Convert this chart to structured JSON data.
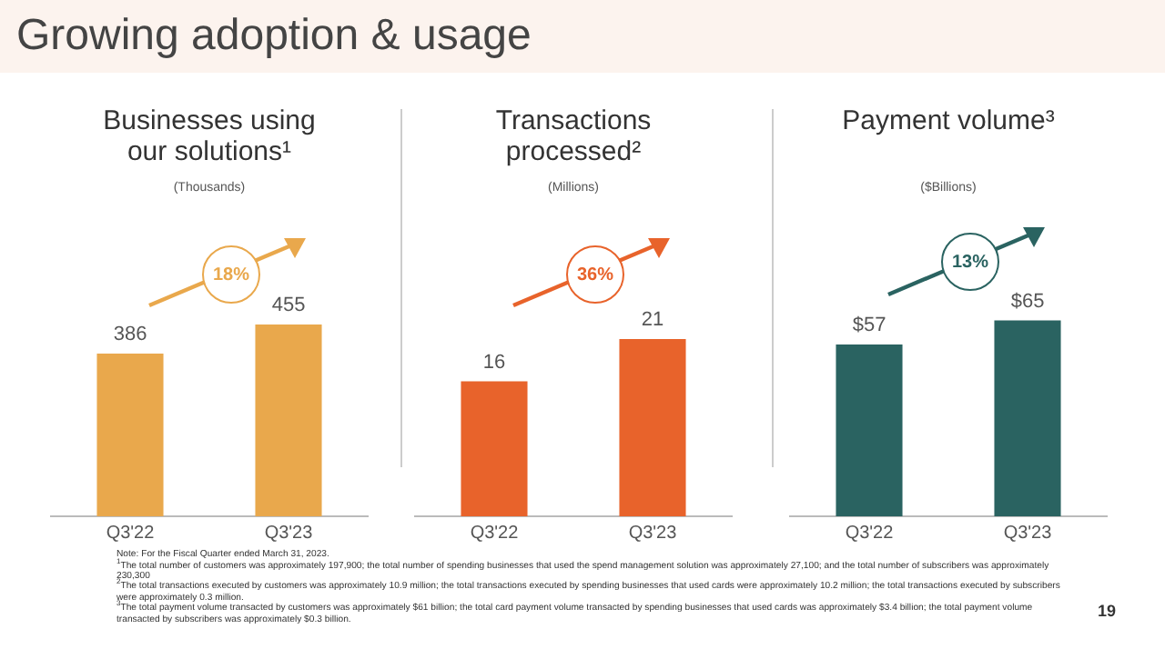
{
  "chart_data": [
    {
      "type": "bar",
      "title": "Businesses using our solutions¹",
      "subtitle": "(Thousands)",
      "categories": [
        "Q3'22",
        "Q3'23"
      ],
      "values": [
        386,
        455
      ],
      "color": "#e9a84c",
      "data_labels": true,
      "annotations": [
        "18%",
        "Growing adoption & usage",
        "Note: For the Fiscal Quarter ended March 31, 2023.",
        "$^{1}$The total number of customers was approximately 197,900; the total number of spending businesses that used the spend management solution was approximately 27,100; and the total number of subscribers was approximately 230,300",
        "$^{2}$The total transactions executed by customers was approximately 10.9 million; the total transactions executed by spending businesses that used cards were approximately 10.2 million; the total transactions executed by subscribers were approximately 0.3 million.",
        "$^{3}$The total payment volume transacted by customers was approximately $61 billion; the total card payment volume transacted by spending businesses that used cards was approximately $3.4 billion; the total payment volume transacted by subscribers was approximately $0.3 billion.",
        "19"
      ]
    },
    {
      "type": "bar",
      "title": "Transactions processed²",
      "subtitle": "(Millions)",
      "categories": [
        "Q3'22",
        "Q3'23"
      ],
      "values": [
        16,
        21
      ],
      "color": "#e8632b",
      "data_labels": true,
      "annotations": [
        "36%"
      ]
    },
    {
      "type": "bar",
      "title": "Payment volume³",
      "subtitle": "($Billions)",
      "categories": [
        "Q3'22",
        "Q3'23"
      ],
      "values": [
        57,
        65
      ],
      "value_labels": [
        "$57",
        "$65"
      ],
      "color": "#2a6361",
      "annotations": [
        "13%"
      ]
    }
  ]
}
